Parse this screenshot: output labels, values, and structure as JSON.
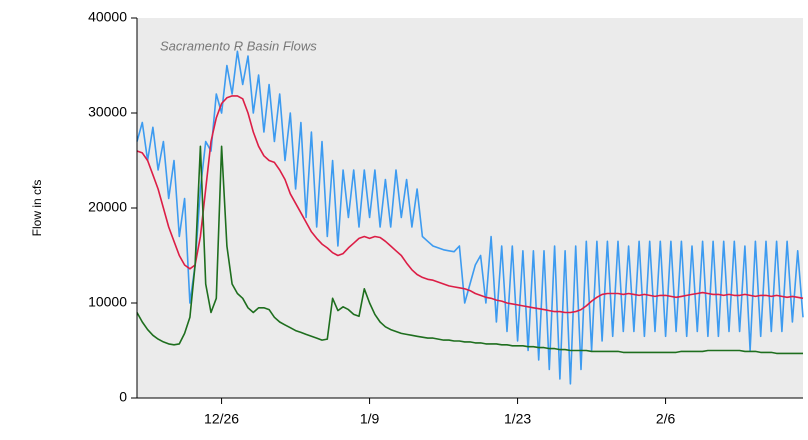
{
  "chart_data": {
    "type": "line",
    "title": "Sacramento R Basin Flows",
    "y_label": "Flow in cfs",
    "x": [
      0,
      0.5,
      1,
      1.5,
      2,
      2.5,
      3,
      3.5,
      4,
      4.5,
      5,
      5.5,
      6,
      6.5,
      7,
      7.5,
      8,
      8.5,
      9,
      9.5,
      10,
      10.5,
      11,
      11.5,
      12,
      12.5,
      13,
      13.5,
      14,
      14.5,
      15,
      15.5,
      16,
      16.5,
      17,
      17.5,
      18,
      18.5,
      19,
      19.5,
      20,
      20.5,
      21,
      21.5,
      22,
      22.5,
      23,
      23.5,
      24,
      24.5,
      25,
      25.5,
      26,
      26.5,
      27,
      27.5,
      28,
      28.5,
      29,
      29.5,
      30,
      30.5,
      31,
      31.5,
      32,
      32.5,
      33,
      33.5,
      34,
      34.5,
      35,
      35.5,
      36,
      36.5,
      37,
      37.5,
      38,
      38.5,
      39,
      39.5,
      40,
      40.5,
      41,
      41.5,
      42,
      42.5,
      43,
      43.5,
      44,
      44.5,
      45,
      45.5,
      46,
      46.5,
      47,
      47.5,
      48,
      48.5,
      49,
      49.5,
      50,
      50.5,
      51,
      51.5,
      52,
      52.5,
      53,
      53.5,
      54,
      54.5,
      55,
      55.5,
      56,
      56.5,
      57,
      57.5,
      58,
      58.5,
      59,
      59.5,
      60,
      60.5,
      61,
      61.5,
      62,
      62.5,
      63
    ],
    "series": [
      {
        "color": "#3d9bf0",
        "values": [
          27000,
          29000,
          25000,
          28500,
          24000,
          27000,
          21000,
          25000,
          17000,
          21000,
          10000,
          14000,
          22000,
          27000,
          26000,
          32000,
          30000,
          35000,
          32000,
          36500,
          33000,
          36000,
          30000,
          34000,
          28000,
          33000,
          27000,
          32000,
          25000,
          30000,
          22000,
          29000,
          19000,
          28000,
          18000,
          27000,
          17000,
          25000,
          16000,
          24000,
          19000,
          24000,
          18000,
          24000,
          19000,
          24000,
          18000,
          23000,
          18000,
          24000,
          19000,
          23000,
          18000,
          22000,
          17000,
          16500,
          16000,
          15800,
          15600,
          15500,
          15400,
          16000,
          10000,
          12000,
          14000,
          15000,
          10000,
          17000,
          8000,
          16000,
          7000,
          16000,
          6000,
          15500,
          5000,
          15500,
          4000,
          15500,
          3000,
          16000,
          2000,
          15500,
          1500,
          16000,
          3000,
          16500,
          5000,
          16500,
          6000,
          16500,
          6500,
          16500,
          7000,
          16000,
          7000,
          16500,
          6500,
          16500,
          7000,
          16500,
          6500,
          16500,
          7000,
          16500,
          6500,
          16000,
          7000,
          16500,
          6500,
          16500,
          6500,
          16500,
          7000,
          16500,
          7000,
          16000,
          5000,
          16500,
          6500,
          16500,
          7000,
          16500,
          7000,
          16500,
          8000,
          15500,
          8500
        ]
      },
      {
        "color": "#dc1e46",
        "values": [
          26000,
          25800,
          25000,
          23500,
          22000,
          20000,
          18000,
          16500,
          15000,
          14000,
          13600,
          14000,
          17000,
          22000,
          27000,
          29500,
          31000,
          31600,
          31800,
          31800,
          31500,
          30000,
          28000,
          26500,
          25500,
          25000,
          24800,
          24000,
          23000,
          21500,
          20500,
          19500,
          18500,
          17500,
          16800,
          16200,
          15800,
          15300,
          15000,
          15200,
          15800,
          16300,
          16800,
          17000,
          16800,
          17000,
          16900,
          16500,
          16000,
          15500,
          15000,
          14200,
          13500,
          13000,
          12700,
          12500,
          12400,
          12200,
          12000,
          11800,
          11700,
          11600,
          11500,
          11300,
          11000,
          10800,
          10600,
          10500,
          10300,
          10200,
          10000,
          9900,
          9800,
          9700,
          9600,
          9500,
          9400,
          9300,
          9200,
          9100,
          9100,
          9000,
          9000,
          9100,
          9300,
          9700,
          10200,
          10600,
          10900,
          11000,
          11000,
          11000,
          10900,
          11000,
          10900,
          10800,
          10900,
          10800,
          10700,
          10800,
          10800,
          10700,
          10600,
          10700,
          10800,
          10900,
          11000,
          11100,
          11000,
          10900,
          10900,
          10800,
          10900,
          10800,
          10800,
          10900,
          10800,
          10700,
          10800,
          10800,
          10700,
          10800,
          10700,
          10600,
          10700,
          10600,
          10500
        ]
      },
      {
        "color": "#1e6e1e",
        "values": [
          9000,
          8000,
          7200,
          6600,
          6200,
          5900,
          5700,
          5600,
          5700,
          6800,
          8500,
          14000,
          26500,
          12000,
          9000,
          10500,
          26500,
          16000,
          12000,
          11000,
          10500,
          9500,
          9000,
          9500,
          9500,
          9300,
          8500,
          8000,
          7700,
          7400,
          7100,
          6900,
          6700,
          6500,
          6300,
          6100,
          6200,
          10500,
          9200,
          9600,
          9300,
          8800,
          8600,
          11500,
          10000,
          8800,
          8000,
          7500,
          7200,
          7000,
          6800,
          6700,
          6600,
          6500,
          6400,
          6300,
          6300,
          6200,
          6100,
          6100,
          6000,
          6000,
          5900,
          5900,
          5800,
          5800,
          5700,
          5700,
          5700,
          5600,
          5600,
          5500,
          5500,
          5500,
          5400,
          5400,
          5300,
          5300,
          5200,
          5200,
          5100,
          5100,
          5000,
          5000,
          5000,
          5000,
          4900,
          4900,
          4900,
          4900,
          4900,
          4900,
          4800,
          4800,
          4800,
          4800,
          4800,
          4800,
          4800,
          4800,
          4800,
          4800,
          4800,
          4900,
          4900,
          4900,
          4900,
          4900,
          5000,
          5000,
          5000,
          5000,
          5000,
          5000,
          5000,
          4900,
          4900,
          4900,
          4800,
          4800,
          4800,
          4700,
          4700,
          4700,
          4700,
          4700,
          4700
        ]
      }
    ],
    "xlim": [
      0,
      63
    ],
    "xticks": [
      {
        "value": 8,
        "label": "12/26"
      },
      {
        "value": 22,
        "label": "1/9"
      },
      {
        "value": 36,
        "label": "1/23"
      },
      {
        "value": 50,
        "label": "2/6"
      }
    ],
    "ylim": [
      0,
      40000
    ],
    "yticks": [
      0,
      10000,
      20000,
      30000,
      40000
    ],
    "plot_background": "#ebebeb"
  }
}
